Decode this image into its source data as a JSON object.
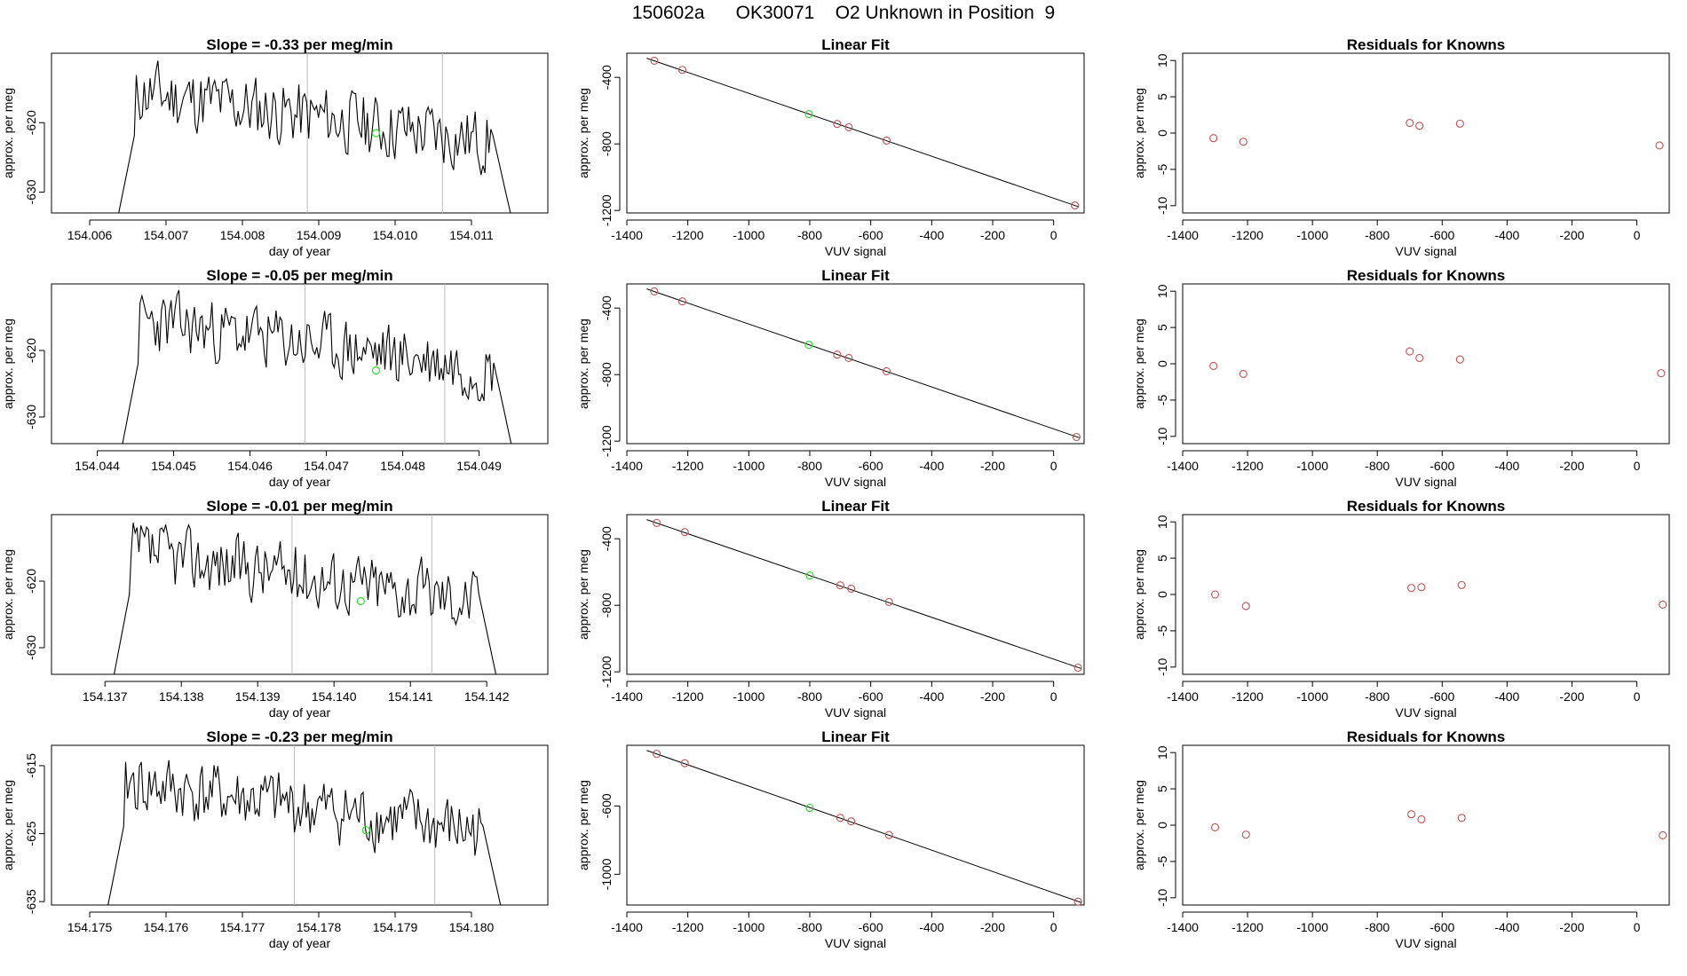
{
  "figure": {
    "title_parts": [
      "150602a",
      "OK30071",
      "O2 Unknown in Position  9"
    ]
  },
  "colors": {
    "trace": "#000000",
    "known": "#c0504d",
    "unknown": "#33dd33",
    "vline": "#bbbbbb",
    "axis": "#000000"
  },
  "labels": {
    "slope_prefix": "Slope =  ",
    "slope_suffix": "  per meg/min",
    "time_xlabel": "day of year",
    "ylabel": "approx. per meg",
    "fit_title": "Linear Fit",
    "fit_xlabel": "VUV signal",
    "resid_title": "Residuals for Knowns",
    "resid_xlabel": "VUV signal"
  },
  "chart_data": [
    {
      "type": "line",
      "title": "Slope =  -0.33  per meg/min",
      "slope": "-0.33",
      "xlabel": "day of year",
      "ylabel": "approx. per meg",
      "xlim": [
        154.0055,
        154.012
      ],
      "ylim": [
        -633,
        -610
      ],
      "xticks": [
        "154.006",
        "154.007",
        "154.008",
        "154.009",
        "154.010",
        "154.011"
      ],
      "yticks": [
        "-620",
        "-630"
      ],
      "start": 154.00638,
      "end": 154.01151,
      "base": -620.5,
      "seed": 11,
      "vlines": [
        154.00885,
        154.01062
      ],
      "unknown_point": [
        154.00975,
        -621.5
      ]
    },
    {
      "type": "line",
      "title": "Slope =  -0.05  per meg/min",
      "slope": "-0.05",
      "xlabel": "day of year",
      "ylabel": "approx. per meg",
      "xlim": [
        154.0434,
        154.0499
      ],
      "ylim": [
        -634,
        -610
      ],
      "xticks": [
        "154.044",
        "154.045",
        "154.046",
        "154.047",
        "154.048",
        "154.049"
      ],
      "yticks": [
        "-620",
        "-630"
      ],
      "start": 154.04433,
      "end": 154.04942,
      "base": -620.5,
      "seed": 23,
      "vlines": [
        154.04672,
        154.04855
      ],
      "unknown_point": [
        154.04765,
        -623
      ]
    },
    {
      "type": "line",
      "title": "Slope =  -0.01  per meg/min",
      "slope": "-0.01",
      "xlabel": "day of year",
      "ylabel": "approx. per meg",
      "xlim": [
        154.1363,
        154.1428
      ],
      "ylim": [
        -634,
        -610
      ],
      "xticks": [
        "154.137",
        "154.138",
        "154.139",
        "154.140",
        "154.141",
        "154.142"
      ],
      "yticks": [
        "-620",
        "-630"
      ],
      "start": 154.13712,
      "end": 154.14212,
      "base": -620.5,
      "seed": 37,
      "vlines": [
        154.13945,
        154.14128
      ],
      "unknown_point": [
        154.14035,
        -623
      ]
    },
    {
      "type": "line",
      "title": "Slope =  -0.23  per meg/min",
      "slope": "-0.23",
      "xlabel": "day of year",
      "ylabel": "approx. per meg",
      "xlim": [
        154.1745,
        154.181
      ],
      "ylim": [
        -635.5,
        -612
      ],
      "xticks": [
        "154.175",
        "154.176",
        "154.177",
        "154.178",
        "154.179",
        "154.180"
      ],
      "yticks": [
        "-615",
        "-625",
        "-635"
      ],
      "start": 154.17524,
      "end": 154.18038,
      "base": -622.5,
      "seed": 41,
      "vlines": [
        154.17768,
        154.17952
      ],
      "unknown_point": [
        154.17862,
        -624.5
      ]
    },
    {
      "type": "scatter",
      "title": "Linear Fit",
      "xlabel": "VUV signal",
      "ylabel": "approx. per meg",
      "xlim": [
        -1400,
        100
      ],
      "ylim": [
        -1215,
        -255
      ],
      "xticks": [
        "-1400",
        "-1200",
        "-1000",
        "-800",
        "-600",
        "-400",
        "-200",
        "0"
      ],
      "yticks": [
        "-400",
        "-800",
        "-1200"
      ],
      "knowns": [
        [
          -1310,
          -300
        ],
        [
          -1218,
          -355
        ],
        [
          -710,
          -680
        ],
        [
          -672,
          -700
        ],
        [
          -548,
          -780
        ],
        [
          70,
          -1170
        ]
      ],
      "unknown": [
        -803,
        -621
      ],
      "fit_line": [
        [
          -1335,
          -285
        ],
        [
          82,
          -1178
        ]
      ]
    },
    {
      "type": "scatter",
      "title": "Linear Fit",
      "xlabel": "VUV signal",
      "ylabel": "approx. per meg",
      "xlim": [
        -1400,
        100
      ],
      "ylim": [
        -1215,
        -255
      ],
      "xticks": [
        "-1400",
        "-1200",
        "-1000",
        "-800",
        "-600",
        "-400",
        "-200",
        "0"
      ],
      "yticks": [
        "-400",
        "-800",
        "-1200"
      ],
      "knowns": [
        [
          -1310,
          -300
        ],
        [
          -1218,
          -360
        ],
        [
          -710,
          -680
        ],
        [
          -672,
          -700
        ],
        [
          -548,
          -780
        ],
        [
          75,
          -1175
        ]
      ],
      "unknown": [
        -803,
        -621
      ],
      "fit_line": [
        [
          -1335,
          -285
        ],
        [
          85,
          -1180
        ]
      ]
    },
    {
      "type": "scatter",
      "title": "Linear Fit",
      "xlabel": "VUV signal",
      "ylabel": "approx. per meg",
      "xlim": [
        -1400,
        100
      ],
      "ylim": [
        -1215,
        -255
      ],
      "xticks": [
        "-1400",
        "-1200",
        "-1000",
        "-800",
        "-600",
        "-400",
        "-200",
        "0"
      ],
      "yticks": [
        "-400",
        "-800",
        "-1200"
      ],
      "knowns": [
        [
          -1302,
          -305
        ],
        [
          -1210,
          -360
        ],
        [
          -700,
          -680
        ],
        [
          -664,
          -700
        ],
        [
          -540,
          -780
        ],
        [
          80,
          -1175
        ]
      ],
      "unknown": [
        -800,
        -621
      ],
      "fit_line": [
        [
          -1335,
          -285
        ],
        [
          90,
          -1180
        ]
      ]
    },
    {
      "type": "scatter",
      "title": "Linear Fit",
      "xlabel": "VUV signal",
      "ylabel": "approx. per meg",
      "xlim": [
        -1400,
        100
      ],
      "ylim": [
        -1180,
        -245
      ],
      "xticks": [
        "-1400",
        "-1200",
        "-1000",
        "-800",
        "-600",
        "-400",
        "-200",
        "0"
      ],
      "yticks": [
        "-600",
        "-1000"
      ],
      "knowns": [
        [
          -1302,
          -295
        ],
        [
          -1210,
          -350
        ],
        [
          -700,
          -670
        ],
        [
          -664,
          -690
        ],
        [
          -540,
          -770
        ],
        [
          80,
          -1160
        ]
      ],
      "unknown": [
        -800,
        -611
      ],
      "fit_line": [
        [
          -1335,
          -275
        ],
        [
          90,
          -1165
        ]
      ]
    },
    {
      "type": "scatter",
      "title": "Residuals for Knowns",
      "xlabel": "VUV signal",
      "ylabel": "approx. per meg",
      "xlim": [
        -1400,
        100
      ],
      "ylim": [
        -11,
        11
      ],
      "xticks": [
        "-1400",
        "-1200",
        "-1000",
        "-800",
        "-600",
        "-400",
        "-200",
        "0"
      ],
      "yticks": [
        "10",
        "5",
        "0",
        "-5",
        "-10"
      ],
      "points": [
        [
          -1305,
          -0.7
        ],
        [
          -1213,
          -1.2
        ],
        [
          -700,
          1.4
        ],
        [
          -670,
          1.0
        ],
        [
          -545,
          1.3
        ],
        [
          70,
          -1.7
        ]
      ]
    },
    {
      "type": "scatter",
      "title": "Residuals for Knowns",
      "xlabel": "VUV signal",
      "ylabel": "approx. per meg",
      "xlim": [
        -1400,
        100
      ],
      "ylim": [
        -11,
        11
      ],
      "xticks": [
        "-1400",
        "-1200",
        "-1000",
        "-800",
        "-600",
        "-400",
        "-200",
        "0"
      ],
      "yticks": [
        "10",
        "5",
        "0",
        "-5",
        "-10"
      ],
      "points": [
        [
          -1305,
          -0.3
        ],
        [
          -1213,
          -1.4
        ],
        [
          -700,
          1.7
        ],
        [
          -670,
          0.8
        ],
        [
          -545,
          0.6
        ],
        [
          75,
          -1.3
        ]
      ]
    },
    {
      "type": "scatter",
      "title": "Residuals for Knowns",
      "xlabel": "VUV signal",
      "ylabel": "approx. per meg",
      "xlim": [
        -1400,
        100
      ],
      "ylim": [
        -11,
        11
      ],
      "xticks": [
        "-1400",
        "-1200",
        "-1000",
        "-800",
        "-600",
        "-400",
        "-200",
        "0"
      ],
      "yticks": [
        "10",
        "5",
        "0",
        "-5",
        "-10"
      ],
      "points": [
        [
          -1300,
          0.0
        ],
        [
          -1205,
          -1.6
        ],
        [
          -695,
          0.9
        ],
        [
          -664,
          1.0
        ],
        [
          -540,
          1.3
        ],
        [
          80,
          -1.4
        ]
      ]
    },
    {
      "type": "scatter",
      "title": "Residuals for Knowns",
      "xlabel": "VUV signal",
      "ylabel": "approx. per meg",
      "xlim": [
        -1400,
        100
      ],
      "ylim": [
        -11,
        11
      ],
      "xticks": [
        "-1400",
        "-1200",
        "-1000",
        "-800",
        "-600",
        "-400",
        "-200",
        "0"
      ],
      "yticks": [
        "10",
        "5",
        "0",
        "-5",
        "-10"
      ],
      "points": [
        [
          -1300,
          -0.3
        ],
        [
          -1205,
          -1.3
        ],
        [
          -695,
          1.5
        ],
        [
          -664,
          0.8
        ],
        [
          -540,
          1.0
        ],
        [
          80,
          -1.4
        ]
      ]
    }
  ]
}
